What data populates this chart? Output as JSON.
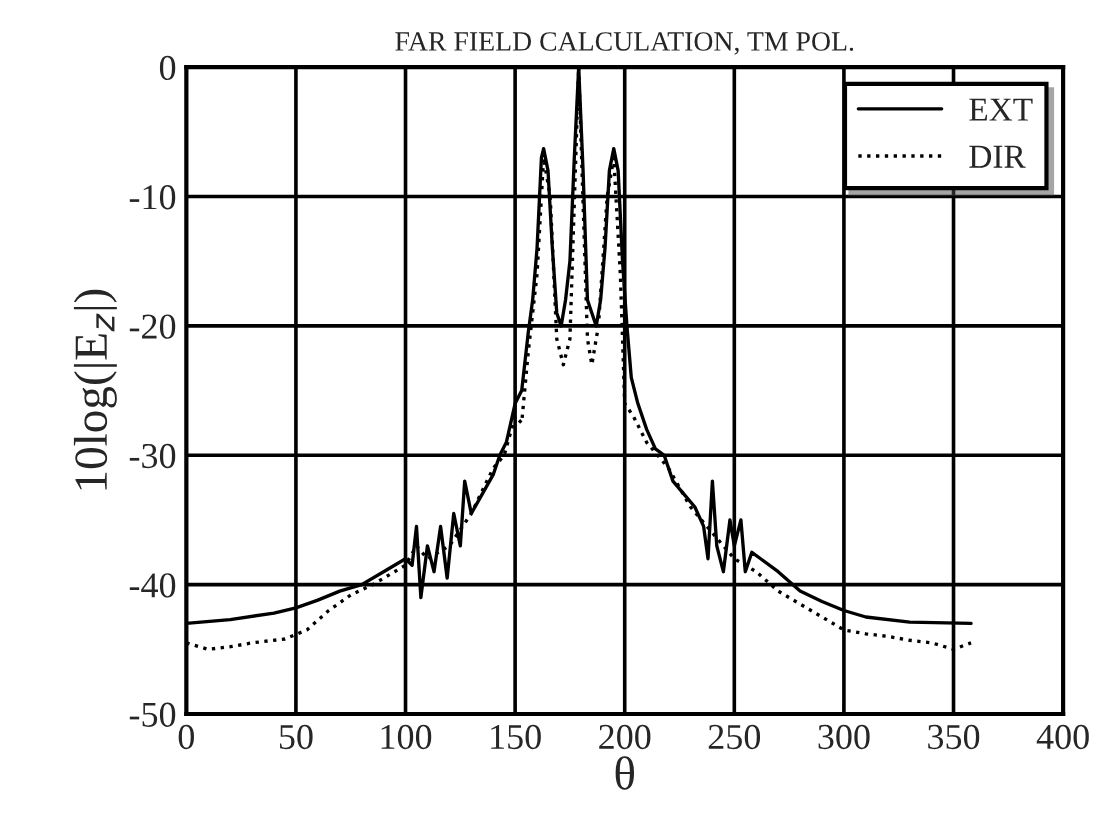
{
  "chart_data": {
    "type": "line",
    "title": "FAR FIELD CALCULATION, TM POL.",
    "xlabel": "θ",
    "ylabel": "10log(|E$_{z}$|)",
    "xlim": [
      0,
      400
    ],
    "xticks": [
      0,
      50,
      100,
      150,
      200,
      250,
      300,
      350,
      400
    ],
    "ylim": [
      -50,
      0
    ],
    "yticks": [
      -50,
      -40,
      -30,
      -20,
      -10,
      0
    ],
    "grid": true,
    "legend": "top right",
    "series": [
      {
        "name": "EXT",
        "color": "#000000",
        "line_style": "solid",
        "x": [
          0,
          20,
          40,
          50,
          60,
          70,
          80,
          90,
          100,
          103,
          105,
          107,
          110,
          113,
          116,
          119,
          122,
          125,
          127,
          130,
          135,
          140,
          143,
          146,
          150,
          153,
          156,
          158,
          160,
          162,
          163,
          165,
          167,
          169,
          171,
          173,
          175,
          177,
          179,
          181,
          183,
          185,
          187,
          189,
          191,
          193,
          195,
          197,
          199,
          201,
          203,
          206,
          210,
          214,
          218,
          222,
          227,
          232,
          236,
          238,
          240,
          242,
          245,
          248,
          250,
          253,
          255,
          258,
          262,
          270,
          280,
          290,
          300,
          310,
          330,
          358
        ],
        "values": [
          -43,
          -42.7,
          -42.2,
          -41.8,
          -41.2,
          -40.5,
          -40,
          -39,
          -38,
          -38.5,
          -35.5,
          -41,
          -37,
          -39,
          -35.5,
          -39.5,
          -34.5,
          -37,
          -32,
          -34.5,
          -33,
          -31.5,
          -30,
          -29,
          -26,
          -25,
          -20.5,
          -18,
          -14,
          -7,
          -6.3,
          -8,
          -14,
          -19,
          -20,
          -18,
          -15,
          -7,
          0,
          -8,
          -18,
          -19,
          -20,
          -18,
          -14,
          -8,
          -6.3,
          -8,
          -15,
          -20,
          -24,
          -26,
          -28,
          -29.5,
          -30,
          -32,
          -33,
          -34,
          -35.5,
          -38,
          -32,
          -37,
          -39,
          -35,
          -37,
          -35,
          -39,
          -37.5,
          -38,
          -39,
          -40.5,
          -41.3,
          -42,
          -42.5,
          -42.9,
          -43
        ]
      },
      {
        "name": "DIR",
        "color": "#000000",
        "line_style": "dotted",
        "x": [
          0,
          10,
          20,
          30,
          45,
          55,
          65,
          75,
          85,
          95,
          100,
          105,
          110,
          120,
          130,
          140,
          145,
          150,
          153,
          156,
          160,
          163,
          166,
          169,
          172,
          175,
          179,
          183,
          185,
          188,
          192,
          195,
          198,
          200,
          204,
          210,
          220,
          230,
          240,
          250,
          260,
          270,
          280,
          290,
          300,
          310,
          320,
          330,
          340,
          350,
          358
        ],
        "values": [
          -44.5,
          -45,
          -44.8,
          -44.5,
          -44.2,
          -43.5,
          -42,
          -40.8,
          -40,
          -39,
          -38.5,
          -37,
          -38,
          -37,
          -34.5,
          -31,
          -30,
          -27,
          -27.5,
          -22,
          -16,
          -7,
          -10,
          -21,
          -23,
          -21,
          0,
          -21,
          -23,
          -20,
          -10,
          -7,
          -16,
          -26,
          -27,
          -29,
          -31,
          -34,
          -36,
          -38,
          -39,
          -40.5,
          -41.5,
          -42.5,
          -43.5,
          -43.8,
          -44,
          -44.3,
          -44.5,
          -45,
          -44.5
        ]
      }
    ]
  }
}
